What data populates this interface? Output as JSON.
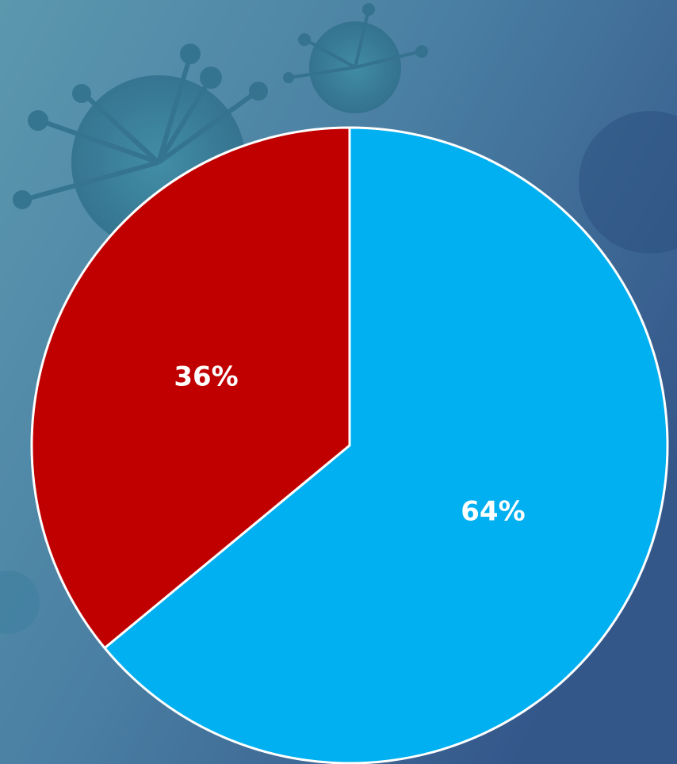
{
  "chart_data": {
    "type": "pie",
    "values": [
      64,
      36
    ],
    "value_labels": [
      "64%",
      "36%"
    ],
    "colors": [
      "#00b0f0",
      "#c00000"
    ]
  }
}
